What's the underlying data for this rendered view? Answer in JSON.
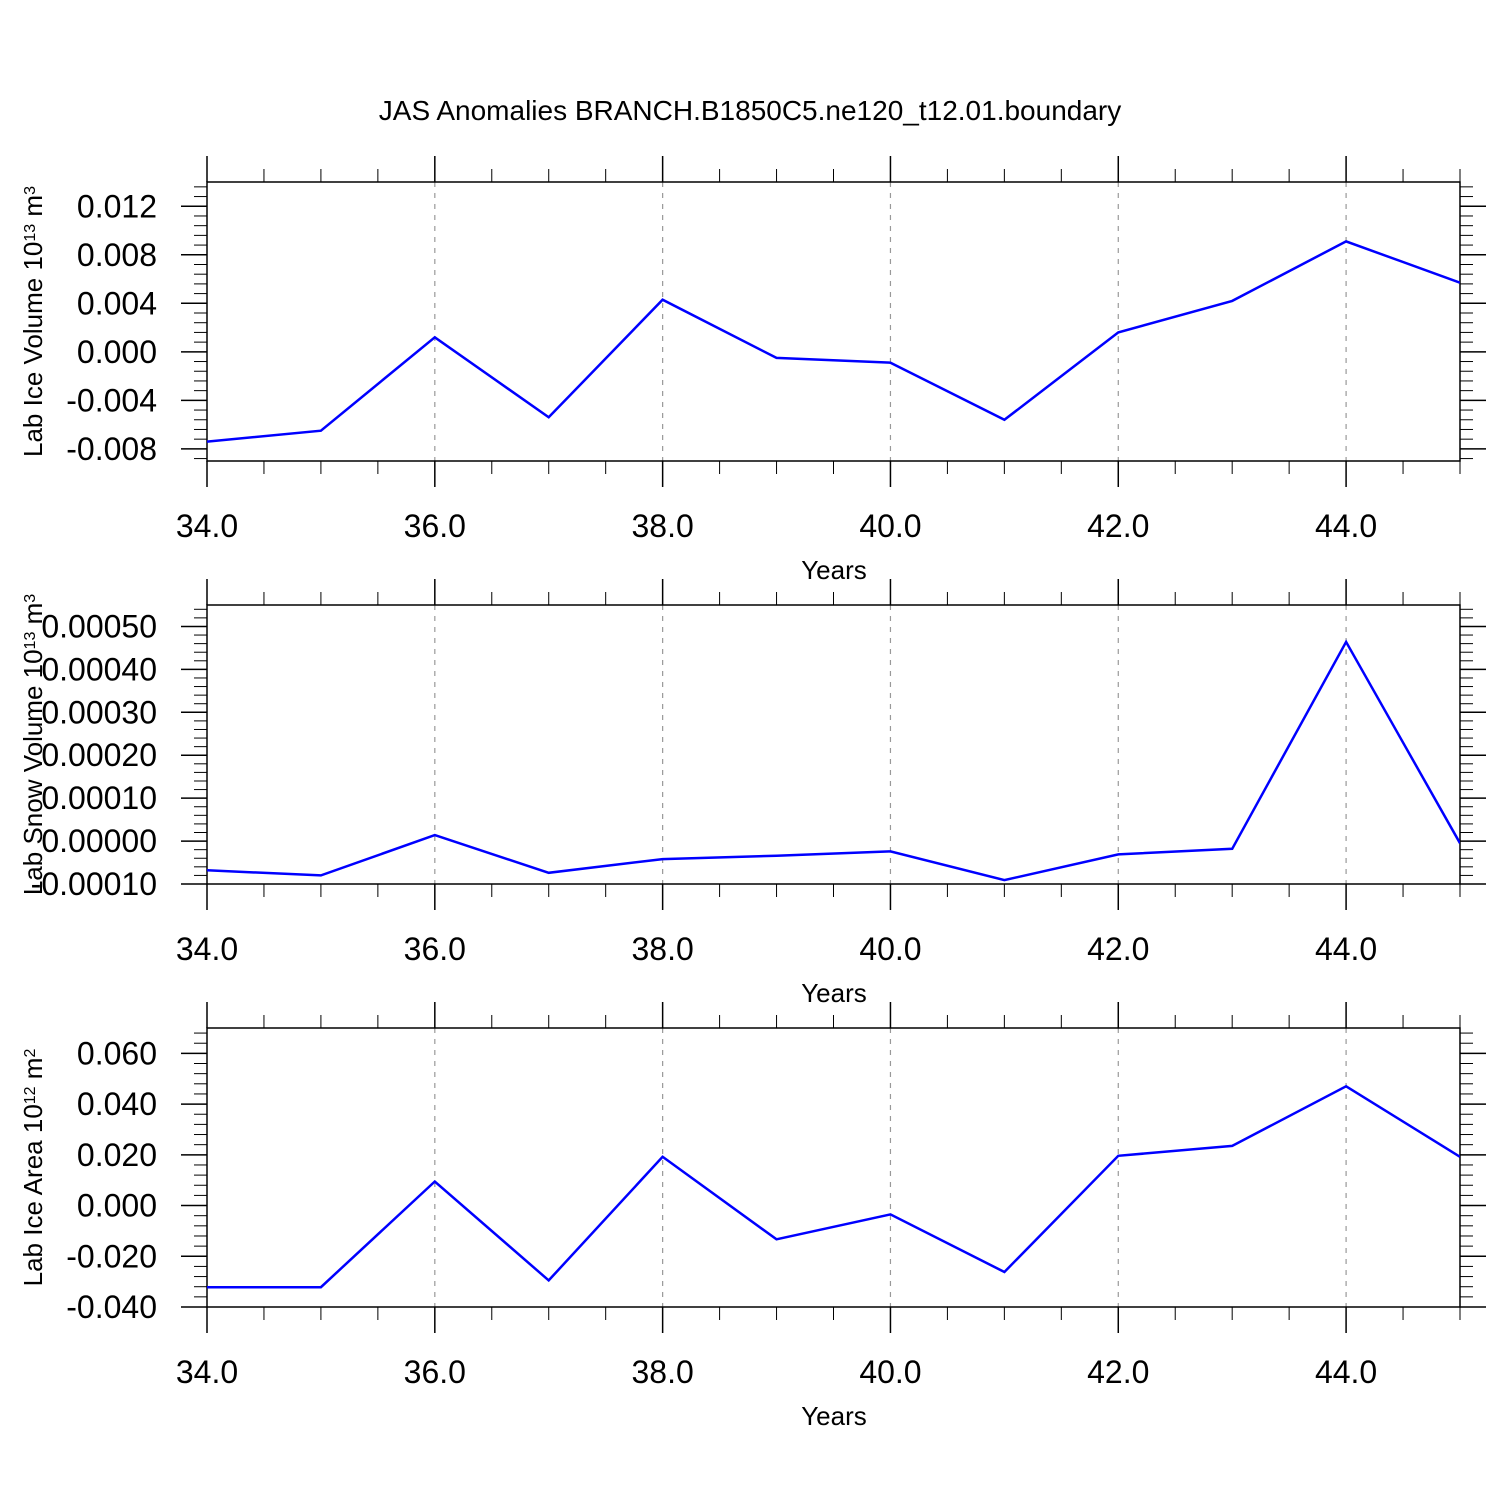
{
  "title": "JAS Anomalies BRANCH.B1850C5.ne120_t12.01.boundary",
  "colors": {
    "line": "#0000ff",
    "axis": "#000000",
    "grid": "#999999"
  },
  "chart_data": [
    {
      "type": "line",
      "xlabel": "Years",
      "ylabel": "Lab Ice Volume 10",
      "ylabel_exp": "13",
      "ylabel_unit": " m",
      "ylabel_unit_exp": "3",
      "xlim": [
        34,
        45
      ],
      "ylim": [
        -0.009,
        0.014
      ],
      "x_ticks": [
        34,
        36,
        38,
        40,
        42,
        44
      ],
      "x_tick_labels": [
        "34.0",
        "36.0",
        "38.0",
        "40.0",
        "42.0",
        "44.0"
      ],
      "y_ticks": [
        -0.008,
        -0.004,
        0.0,
        0.004,
        0.008,
        0.012
      ],
      "y_tick_labels": [
        "-0.008",
        "-0.004",
        "0.000",
        "0.004",
        "0.008",
        "0.012"
      ],
      "y_minor_step": 0.0008,
      "grid": "x-major-dashed",
      "series": [
        {
          "x": [
            34,
            35,
            36,
            37,
            38,
            39,
            40,
            41,
            42,
            43,
            44,
            45
          ],
          "values": [
            -0.0074,
            -0.0065,
            0.0012,
            -0.0054,
            0.0043,
            -0.0005,
            -0.0009,
            -0.0056,
            0.0016,
            0.0042,
            0.0091,
            0.0057
          ]
        }
      ]
    },
    {
      "type": "line",
      "xlabel": "Years",
      "ylabel": "Lab Snow Volume 10",
      "ylabel_exp": "13",
      "ylabel_unit": " m",
      "ylabel_unit_exp": "3",
      "xlim": [
        34,
        45
      ],
      "ylim": [
        -0.0001,
        0.00055
      ],
      "x_ticks": [
        34,
        36,
        38,
        40,
        42,
        44
      ],
      "x_tick_labels": [
        "34.0",
        "36.0",
        "38.0",
        "40.0",
        "42.0",
        "44.0"
      ],
      "y_ticks": [
        -0.0001,
        0.0,
        0.0001,
        0.0002,
        0.0003,
        0.0004,
        0.0005
      ],
      "y_tick_labels": [
        "-0.00010",
        "0.00000",
        "0.00010",
        "0.00020",
        "0.00030",
        "0.00040",
        "0.00050"
      ],
      "y_minor_step": 2e-05,
      "grid": "x-major-dashed",
      "series": [
        {
          "x": [
            34,
            35,
            36,
            37,
            38,
            39,
            40,
            41,
            42,
            43,
            44,
            45
          ],
          "values": [
            -6.8e-05,
            -8e-05,
            1.4e-05,
            -7.4e-05,
            -4.2e-05,
            -3.4e-05,
            -2.4e-05,
            -9.1e-05,
            -3.1e-05,
            -1.8e-05,
            0.000464,
            -5e-06
          ]
        }
      ]
    },
    {
      "type": "line",
      "xlabel": "Years",
      "ylabel": "Lab Ice Area 10",
      "ylabel_exp": "12",
      "ylabel_unit": " m",
      "ylabel_unit_exp": "2",
      "xlim": [
        34,
        45
      ],
      "ylim": [
        -0.04,
        0.07
      ],
      "x_ticks": [
        34,
        36,
        38,
        40,
        42,
        44
      ],
      "x_tick_labels": [
        "34.0",
        "36.0",
        "38.0",
        "40.0",
        "42.0",
        "44.0"
      ],
      "y_ticks": [
        -0.04,
        -0.02,
        0.0,
        0.02,
        0.04,
        0.06
      ],
      "y_tick_labels": [
        "-0.040",
        "-0.020",
        "0.000",
        "0.020",
        "0.040",
        "0.060"
      ],
      "y_minor_step": 0.004,
      "grid": "x-major-dashed",
      "series": [
        {
          "x": [
            34,
            35,
            36,
            37,
            38,
            39,
            40,
            41,
            42,
            43,
            44,
            45
          ],
          "values": [
            -0.0322,
            -0.0322,
            0.0095,
            -0.0295,
            0.0192,
            -0.0133,
            -0.0035,
            -0.0262,
            0.0196,
            0.0235,
            0.047,
            0.0192
          ]
        }
      ]
    }
  ]
}
